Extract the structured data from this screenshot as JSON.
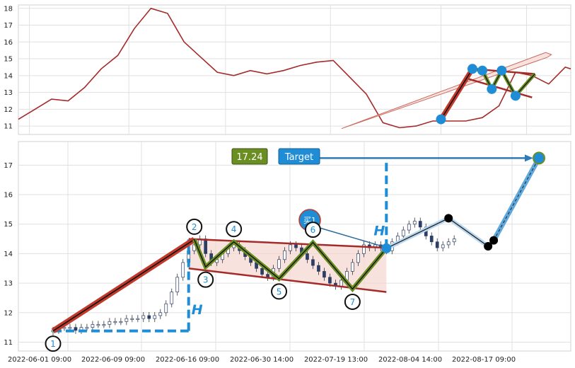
{
  "chart_data": [
    {
      "type": "line",
      "panel": "overview",
      "ylim": [
        10.5,
        18.2
      ],
      "y_ticks": [
        "11",
        "12",
        "13",
        "14",
        "15",
        "16",
        "17",
        "18"
      ],
      "grid": true,
      "series": [
        {
          "color": "#a52a2a",
          "x": [
            0,
            3,
            6,
            9,
            12,
            15,
            18,
            21,
            24,
            27,
            30,
            33,
            36,
            39,
            42,
            45,
            48,
            51,
            54,
            57,
            60,
            63,
            66,
            69,
            72,
            75,
            78,
            81,
            84,
            87,
            90,
            93,
            96,
            99,
            100
          ],
          "y": [
            11.4,
            12.0,
            12.6,
            12.5,
            13.3,
            14.4,
            15.2,
            16.8,
            18.0,
            17.7,
            16.0,
            15.1,
            14.2,
            14.0,
            14.3,
            14.1,
            14.3,
            14.6,
            14.8,
            14.9,
            13.9,
            12.9,
            11.2,
            10.9,
            11.0,
            11.3,
            11.3,
            11.3,
            11.5,
            12.2,
            14.2,
            14.0,
            13.5,
            14.5,
            14.4
          ]
        }
      ],
      "pattern_points": [
        {
          "x": 76.5,
          "y": 11.4
        },
        {
          "x": 82.2,
          "y": 14.4
        },
        {
          "x": 84.0,
          "y": 14.3
        },
        {
          "x": 85.7,
          "y": 13.2
        },
        {
          "x": 87.5,
          "y": 14.3
        },
        {
          "x": 90.0,
          "y": 12.8
        }
      ],
      "pattern_lines": {
        "upper": [
          [
            82.2,
            14.4
          ],
          [
            93.5,
            14.1
          ]
        ],
        "lower": [
          [
            81.5,
            13.8
          ],
          [
            93.0,
            12.7
          ]
        ],
        "trend_arrow": [
          [
            58.5,
            10.85
          ],
          [
            96.5,
            15.25
          ]
        ]
      }
    },
    {
      "type": "candlestick",
      "panel": "pattern",
      "ylim": [
        10.7,
        17.8
      ],
      "y_ticks": [
        "11",
        "12",
        "13",
        "14",
        "15",
        "16",
        "17"
      ],
      "x_tick_labels": [
        "2022-06-01 09:00",
        "2022-06-09 09:00",
        "2022-06-16 09:00",
        "2022-06-30 14:00",
        "2022-07-19 13:00",
        "2022-08-04 14:00",
        "2022-08-17 09:00"
      ],
      "grid": true,
      "candles_close": [
        11.4,
        11.5,
        11.5,
        11.5,
        11.4,
        11.5,
        11.5,
        11.6,
        11.6,
        11.6,
        11.7,
        11.7,
        11.7,
        11.8,
        11.8,
        11.8,
        11.9,
        11.8,
        11.9,
        12.0,
        12.3,
        12.7,
        13.2,
        13.7,
        14.1,
        14.3,
        14.5,
        14.0,
        13.7,
        13.8,
        14.0,
        14.2,
        14.3,
        14.1,
        13.9,
        13.7,
        13.5,
        13.3,
        13.2,
        13.5,
        13.8,
        14.1,
        14.3,
        14.2,
        14.0,
        13.8,
        13.6,
        13.4,
        13.2,
        13.0,
        12.9,
        13.1,
        13.4,
        13.7,
        14.0,
        14.3,
        14.2,
        14.3,
        14.2,
        14.1,
        14.4,
        14.6,
        14.8,
        15.0,
        15.1,
        14.9,
        14.6,
        14.4,
        14.2,
        14.3,
        14.4,
        14.5
      ],
      "pattern_points": [
        {
          "label": "1",
          "x": 0,
          "y": 11.38
        },
        {
          "label": "2",
          "x": 25,
          "y": 14.48
        },
        {
          "label": "3",
          "x": 27,
          "y": 13.55
        },
        {
          "label": "4",
          "x": 32,
          "y": 14.4
        },
        {
          "label": "5",
          "x": 40,
          "y": 13.15
        },
        {
          "label": "6",
          "x": 46,
          "y": 14.38
        },
        {
          "label": "7",
          "x": 53,
          "y": 12.8
        }
      ],
      "breakout_point": {
        "x": 59,
        "y": 14.18
      },
      "black_points": [
        {
          "x": 70,
          "y": 15.2
        },
        {
          "x": 77,
          "y": 14.25
        },
        {
          "x": 78,
          "y": 14.45
        }
      ],
      "target_point": {
        "x": 86,
        "y": 17.24
      },
      "channel": {
        "upper": [
          [
            24,
            14.5
          ],
          [
            59,
            14.2
          ]
        ],
        "lower": [
          [
            24,
            13.5
          ],
          [
            59,
            12.7
          ]
        ]
      },
      "height_guides": {
        "h_baseline": [
          [
            0,
            11.38
          ],
          [
            24,
            11.38
          ]
        ],
        "h_vertical_left": [
          [
            24,
            11.38
          ],
          [
            24,
            14.48
          ]
        ],
        "h_vertical_right": [
          [
            59,
            14.2
          ],
          [
            59,
            17.24
          ]
        ],
        "target_arrow": [
          [
            40,
            17.24
          ],
          [
            86,
            17.24
          ]
        ]
      },
      "labels": {
        "target_value": "17.24",
        "target_text": "Target",
        "buy_label": "买1",
        "height_letter_left": "H",
        "height_letter_right": "H"
      },
      "colors": {
        "red_line": "#c0392b",
        "green_zigzag": "#6b8e23",
        "blue_accent": "#1f8dd6",
        "channel_fill": "#f5d5cf",
        "channel_border": "#a52a2a"
      }
    }
  ]
}
